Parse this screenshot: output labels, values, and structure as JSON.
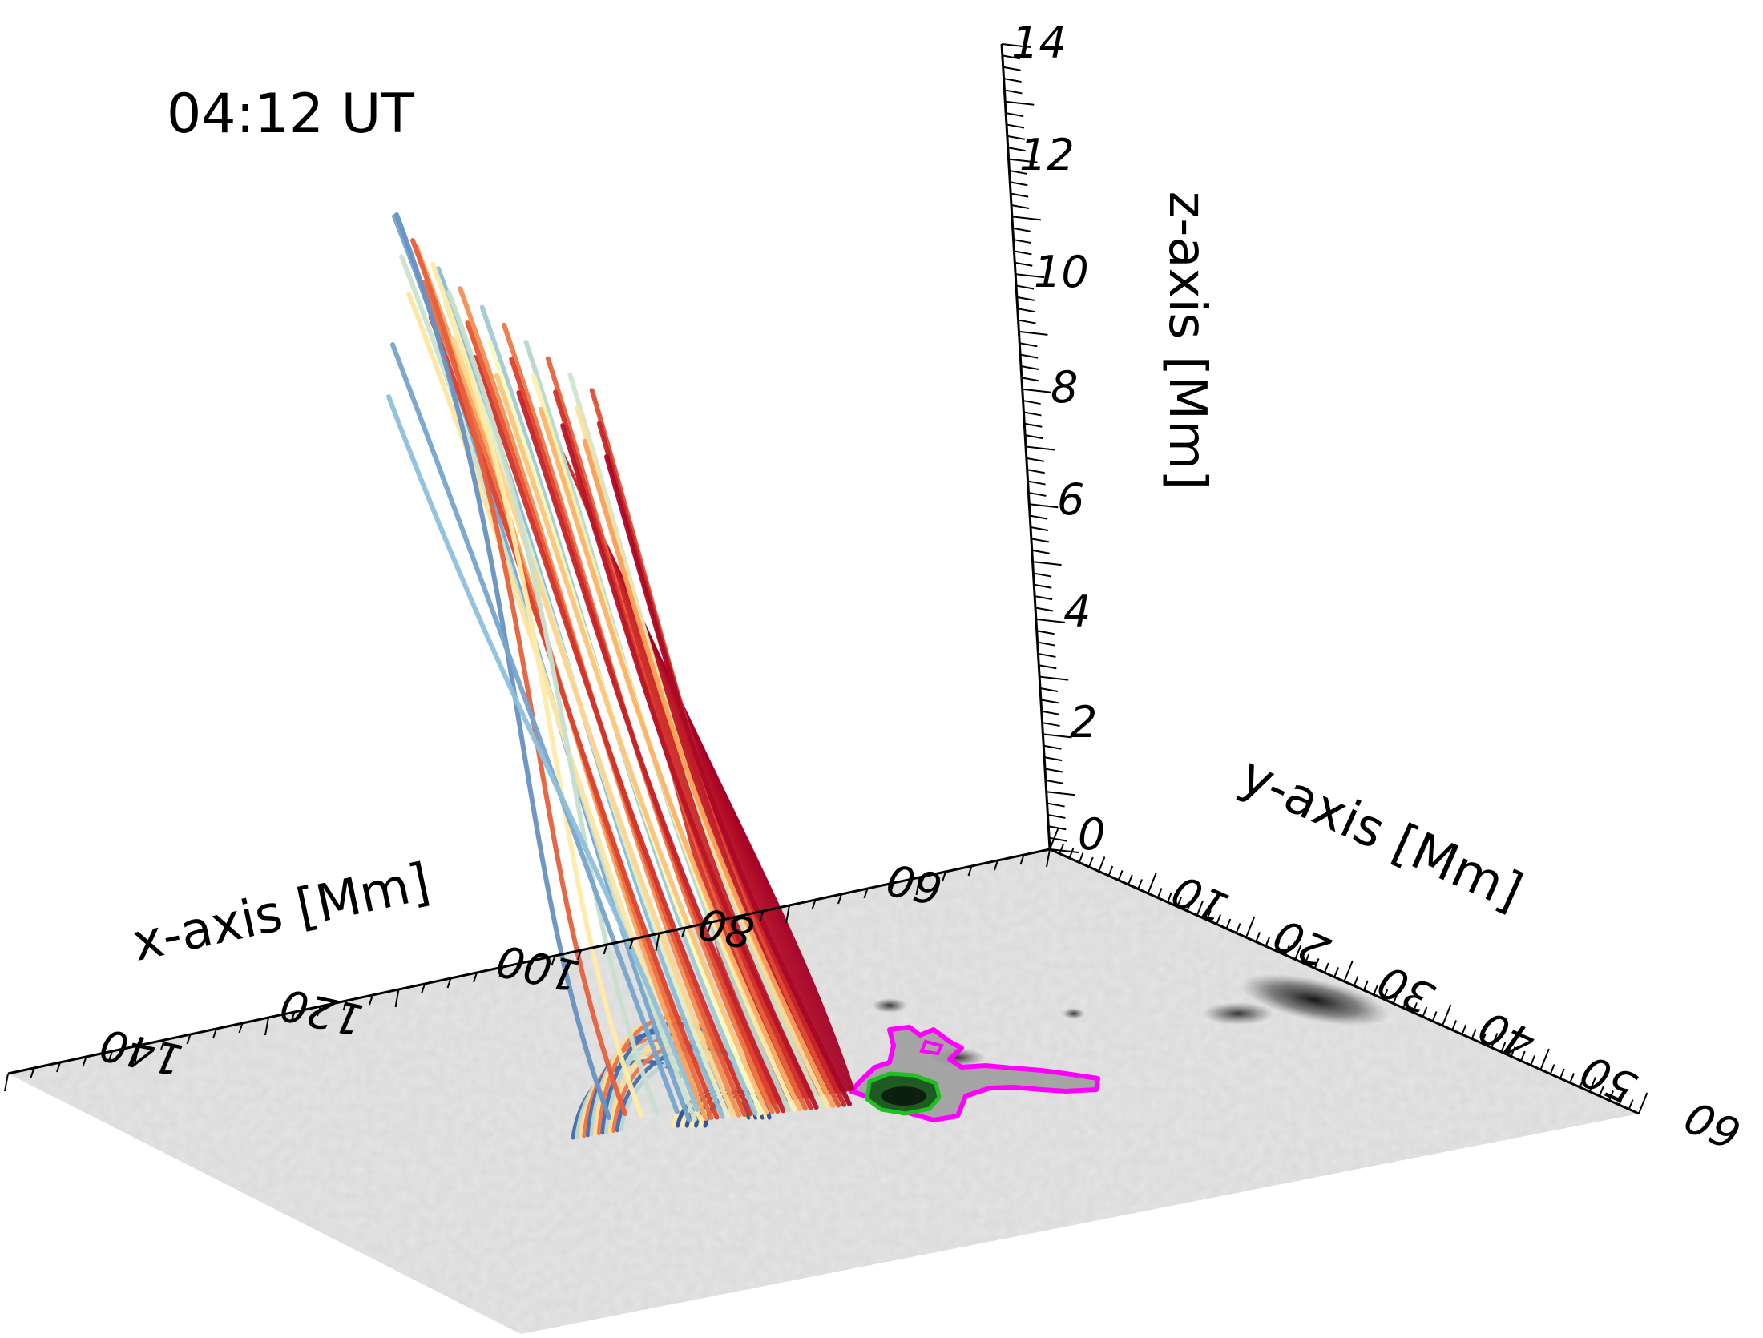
{
  "time_label": "04:12 UT",
  "chart_data": {
    "type": "3d-field-line-plot",
    "xlabel": "x-axis [Mm]",
    "ylabel": "y-axis [Mm]",
    "zlabel": "z-axis [Mm]",
    "x_ticks": [
      "60",
      "80",
      "100",
      "120",
      "140"
    ],
    "y_ticks": [
      "10",
      "20",
      "30",
      "40",
      "50",
      "60"
    ],
    "z_ticks": [
      "0",
      "2",
      "4",
      "6",
      "8",
      "10",
      "12",
      "14"
    ],
    "zlim": [
      0,
      14
    ],
    "ylim": [
      0,
      60
    ],
    "grid": false,
    "colormap": [
      "#2a4d9b",
      "#8fbfdc",
      "#ffffbf",
      "#fdae61",
      "#e0452e",
      "#a50026"
    ]
  }
}
